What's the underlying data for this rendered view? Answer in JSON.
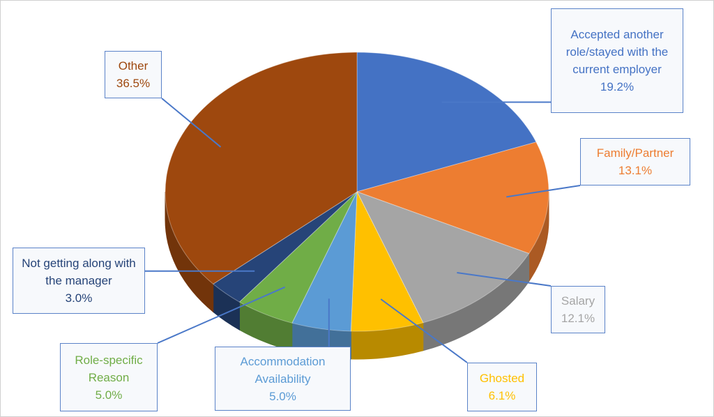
{
  "chart_data": {
    "type": "pie",
    "categories": [
      "Accepted another role/stayed with the current employer",
      "Family/Partner",
      "Salary",
      "Ghosted",
      "Accommodation Availability",
      "Role-specific Reason",
      "Not getting along with the manager",
      "Other"
    ],
    "values": [
      19.2,
      13.1,
      12.1,
      6.1,
      5.0,
      5.0,
      3.0,
      36.5
    ],
    "value_labels": [
      "19.2%",
      "13.1%",
      "12.1%",
      "6.1%",
      "5.0%",
      "5.0%",
      "3.0%",
      "36.5%"
    ],
    "colors": [
      "#4472c4",
      "#ed7d31",
      "#a5a5a5",
      "#ffc000",
      "#5b9bd5",
      "#70ad47",
      "#264478",
      "#9e480e"
    ]
  }
}
